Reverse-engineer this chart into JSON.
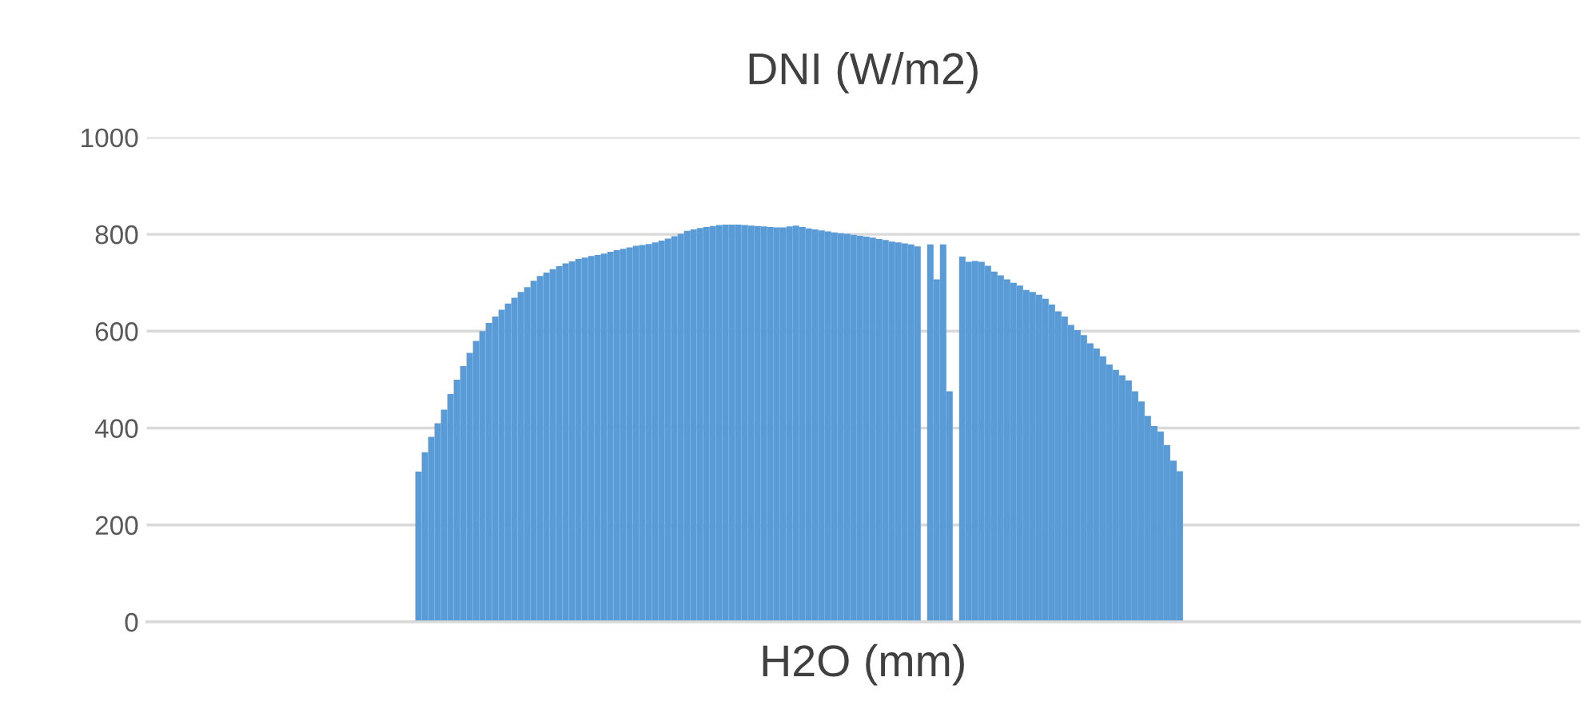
{
  "chart_data": {
    "type": "bar",
    "title": "DNI (W/m2)",
    "xlabel": "H2O (mm)",
    "categories": [
      null,
      null,
      null,
      null,
      null,
      null,
      null,
      null,
      null,
      null,
      null,
      null,
      null,
      null,
      null,
      null,
      null,
      null,
      null,
      null,
      null,
      null,
      null,
      null,
      null,
      null,
      null,
      null,
      null,
      null,
      null,
      null,
      null,
      null,
      null,
      null,
      null,
      null,
      null,
      null,
      null,
      null,
      null,
      null,
      null,
      null,
      null,
      null,
      null,
      null,
      null,
      null,
      null,
      null,
      null,
      null,
      null,
      null,
      null,
      null,
      null,
      null,
      null,
      null,
      null,
      null,
      null,
      null,
      null,
      null,
      null,
      null,
      null,
      null,
      null,
      null,
      null,
      null,
      null,
      null,
      null,
      null,
      null,
      null,
      null,
      null,
      null,
      null,
      null,
      null,
      null,
      null,
      null,
      null,
      null,
      null,
      null,
      null,
      null,
      null,
      null,
      null,
      null,
      null,
      null,
      null,
      null,
      null,
      null,
      null,
      null,
      null,
      null,
      null,
      null,
      null,
      null,
      null,
      null,
      null,
      null,
      null,
      null,
      null,
      null,
      null,
      null,
      null,
      null,
      null,
      null,
      null,
      null,
      null,
      null,
      null,
      null,
      null,
      null,
      null,
      null,
      null,
      null,
      null,
      null,
      null,
      null,
      null,
      null,
      null,
      null,
      null,
      null,
      null,
      null,
      null,
      null,
      null,
      null,
      null,
      null,
      null,
      null,
      null,
      null,
      null,
      null,
      null,
      null,
      null,
      null,
      null,
      null,
      null,
      null,
      null,
      null,
      null,
      null,
      null,
      null,
      null,
      null,
      null,
      null,
      null,
      null,
      null,
      null,
      null,
      null,
      null,
      null,
      null,
      null,
      null,
      null,
      null,
      null,
      null,
      null,
      null,
      null,
      null,
      null,
      null,
      null,
      null,
      null,
      null,
      null,
      null,
      null,
      null,
      null,
      null,
      null,
      null,
      null,
      null,
      null,
      null,
      null,
      null
    ],
    "values": [
      null,
      null,
      null,
      null,
      null,
      null,
      null,
      null,
      null,
      null,
      null,
      null,
      null,
      null,
      null,
      null,
      null,
      null,
      null,
      null,
      null,
      null,
      null,
      null,
      null,
      null,
      null,
      null,
      null,
      null,
      null,
      null,
      null,
      null,
      null,
      null,
      null,
      null,
      null,
      null,
      null,
      null,
      310,
      350,
      382,
      410,
      438,
      470,
      500,
      528,
      555,
      580,
      600,
      617,
      630,
      644,
      657,
      669,
      681,
      691,
      704,
      714,
      721,
      728,
      734,
      740,
      744,
      749,
      752,
      755,
      757,
      760,
      764,
      767,
      770,
      773,
      776,
      778,
      780,
      783,
      787,
      791,
      796,
      801,
      807,
      810,
      813,
      815,
      817,
      819,
      820,
      820,
      820,
      819,
      818,
      817,
      816,
      815,
      814,
      814,
      816,
      818,
      815,
      812,
      810,
      808,
      806,
      804,
      802,
      801,
      799,
      797,
      795,
      793,
      790,
      788,
      785,
      783,
      781,
      779,
      775,
      null,
      779,
      707,
      779,
      476,
      null,
      754,
      743,
      745,
      743,
      735,
      723,
      715,
      707,
      700,
      694,
      685,
      681,
      675,
      667,
      655,
      641,
      630,
      613,
      602,
      592,
      575,
      564,
      548,
      531,
      520,
      509,
      498,
      476,
      455,
      425,
      404,
      393,
      365,
      333,
      311,
      null,
      null,
      null,
      null,
      null,
      null,
      null,
      null,
      null,
      null,
      null,
      null,
      null,
      null,
      null,
      null,
      null,
      null,
      null,
      null,
      null,
      null,
      null,
      null,
      null,
      null,
      null,
      null,
      null,
      null,
      null,
      null,
      null,
      null,
      null,
      null,
      null,
      null,
      null,
      null,
      null,
      null,
      null,
      null,
      null,
      null,
      null,
      null,
      null,
      null,
      null,
      null,
      null,
      null,
      null,
      null,
      null,
      null,
      null,
      null,
      null,
      null
    ],
    "color": "#5b9bd5",
    "ylim": [
      0,
      1000
    ],
    "yticks": [
      0,
      200,
      400,
      600,
      800,
      1000
    ],
    "grid": "y",
    "tick_labels": "y"
  }
}
